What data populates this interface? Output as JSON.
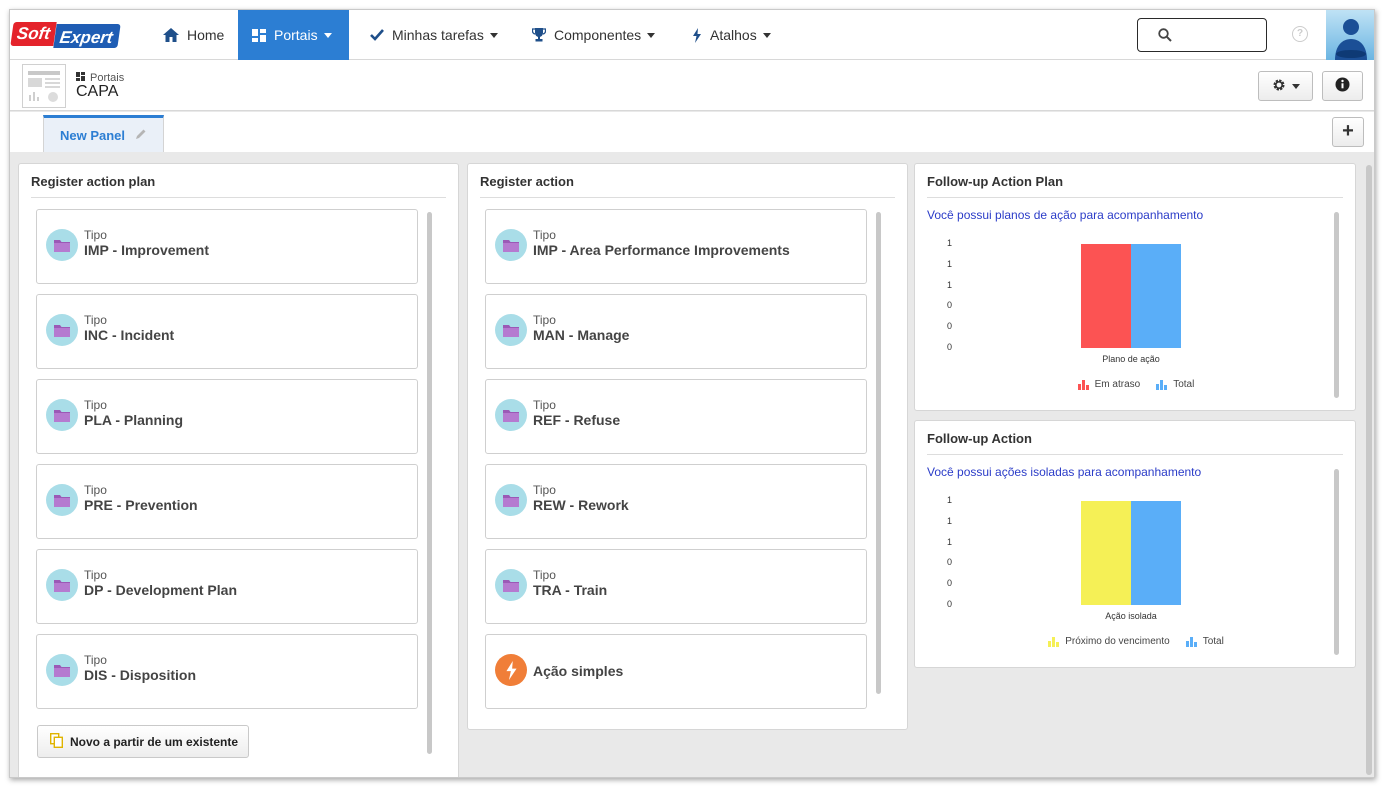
{
  "brand": {
    "logo_left": "Soft",
    "logo_right": "Expert"
  },
  "nav": {
    "home": "Home",
    "portais": "Portais",
    "tarefas": "Minhas tarefas",
    "componentes": "Componentes",
    "atalhos": "Atalhos"
  },
  "header": {
    "breadcrumb": "Portais",
    "title": "CAPA"
  },
  "tabs": {
    "active": "New Panel"
  },
  "register_plan": {
    "title": "Register action plan",
    "items": [
      {
        "small": "Tipo",
        "label": "IMP - Improvement"
      },
      {
        "small": "Tipo",
        "label": "INC - Incident"
      },
      {
        "small": "Tipo",
        "label": "PLA - Planning"
      },
      {
        "small": "Tipo",
        "label": "PRE - Prevention"
      },
      {
        "small": "Tipo",
        "label": "DP - Development Plan"
      },
      {
        "small": "Tipo",
        "label": "DIS - Disposition"
      }
    ],
    "button": "Novo a partir de um existente"
  },
  "register_action": {
    "title": "Register action",
    "items": [
      {
        "small": "Tipo",
        "label": "IMP - Area Performance Improvements"
      },
      {
        "small": "Tipo",
        "label": "MAN - Manage"
      },
      {
        "small": "Tipo",
        "label": "REF - Refuse"
      },
      {
        "small": "Tipo",
        "label": "REW - Rework"
      },
      {
        "small": "Tipo",
        "label": "TRA - Train"
      }
    ],
    "simple": "Ação simples"
  },
  "followup_plan": {
    "title": "Follow-up Action Plan",
    "link": "Você possui planos de ação para acompanhamento"
  },
  "followup_action": {
    "title": "Follow-up Action",
    "link": "Você possui ações isoladas para acompanhamento"
  },
  "chart_data": [
    {
      "type": "bar",
      "categories": [
        "Plano de ação"
      ],
      "series": [
        {
          "name": "Em atraso",
          "values": [
            1
          ],
          "color": "#fc5353"
        },
        {
          "name": "Total",
          "values": [
            1
          ],
          "color": "#5aaef8"
        }
      ],
      "yticks": [
        "1",
        "1",
        "1",
        "0",
        "0",
        "0"
      ],
      "legend": "bottom"
    },
    {
      "type": "bar",
      "categories": [
        "Ação isolada"
      ],
      "series": [
        {
          "name": "Próximo do vencimento",
          "values": [
            1
          ],
          "color": "#f5f056"
        },
        {
          "name": "Total",
          "values": [
            1
          ],
          "color": "#5aaef8"
        }
      ],
      "yticks": [
        "1",
        "1",
        "1",
        "0",
        "0",
        "0"
      ],
      "legend": "bottom"
    }
  ],
  "colors": {
    "accent": "#2c7ed3",
    "link": "#2b3cc8",
    "card_icon": "#a9dde8",
    "simple_icon": "#f07e38"
  }
}
